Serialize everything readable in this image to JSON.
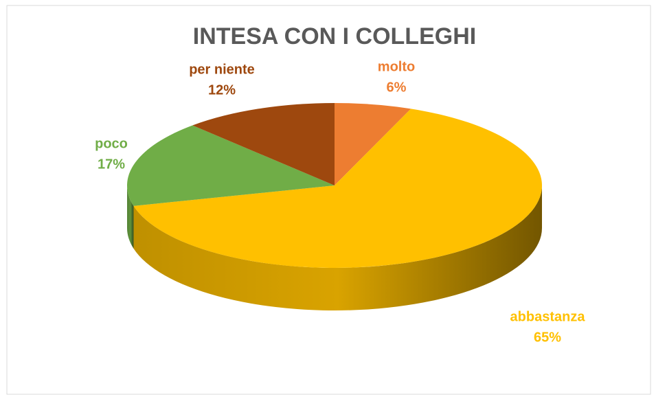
{
  "chart_data": {
    "type": "pie",
    "title": "INTESA CON I COLLEGHI",
    "categories": [
      "molto",
      "abbastanza",
      "poco",
      "per niente"
    ],
    "values": [
      6,
      65,
      17,
      12
    ],
    "value_labels": [
      "6%",
      "65%",
      "17%",
      "12%"
    ],
    "colors": [
      "#ED7D31",
      "#FFC000",
      "#70AD47",
      "#9E480E"
    ]
  }
}
